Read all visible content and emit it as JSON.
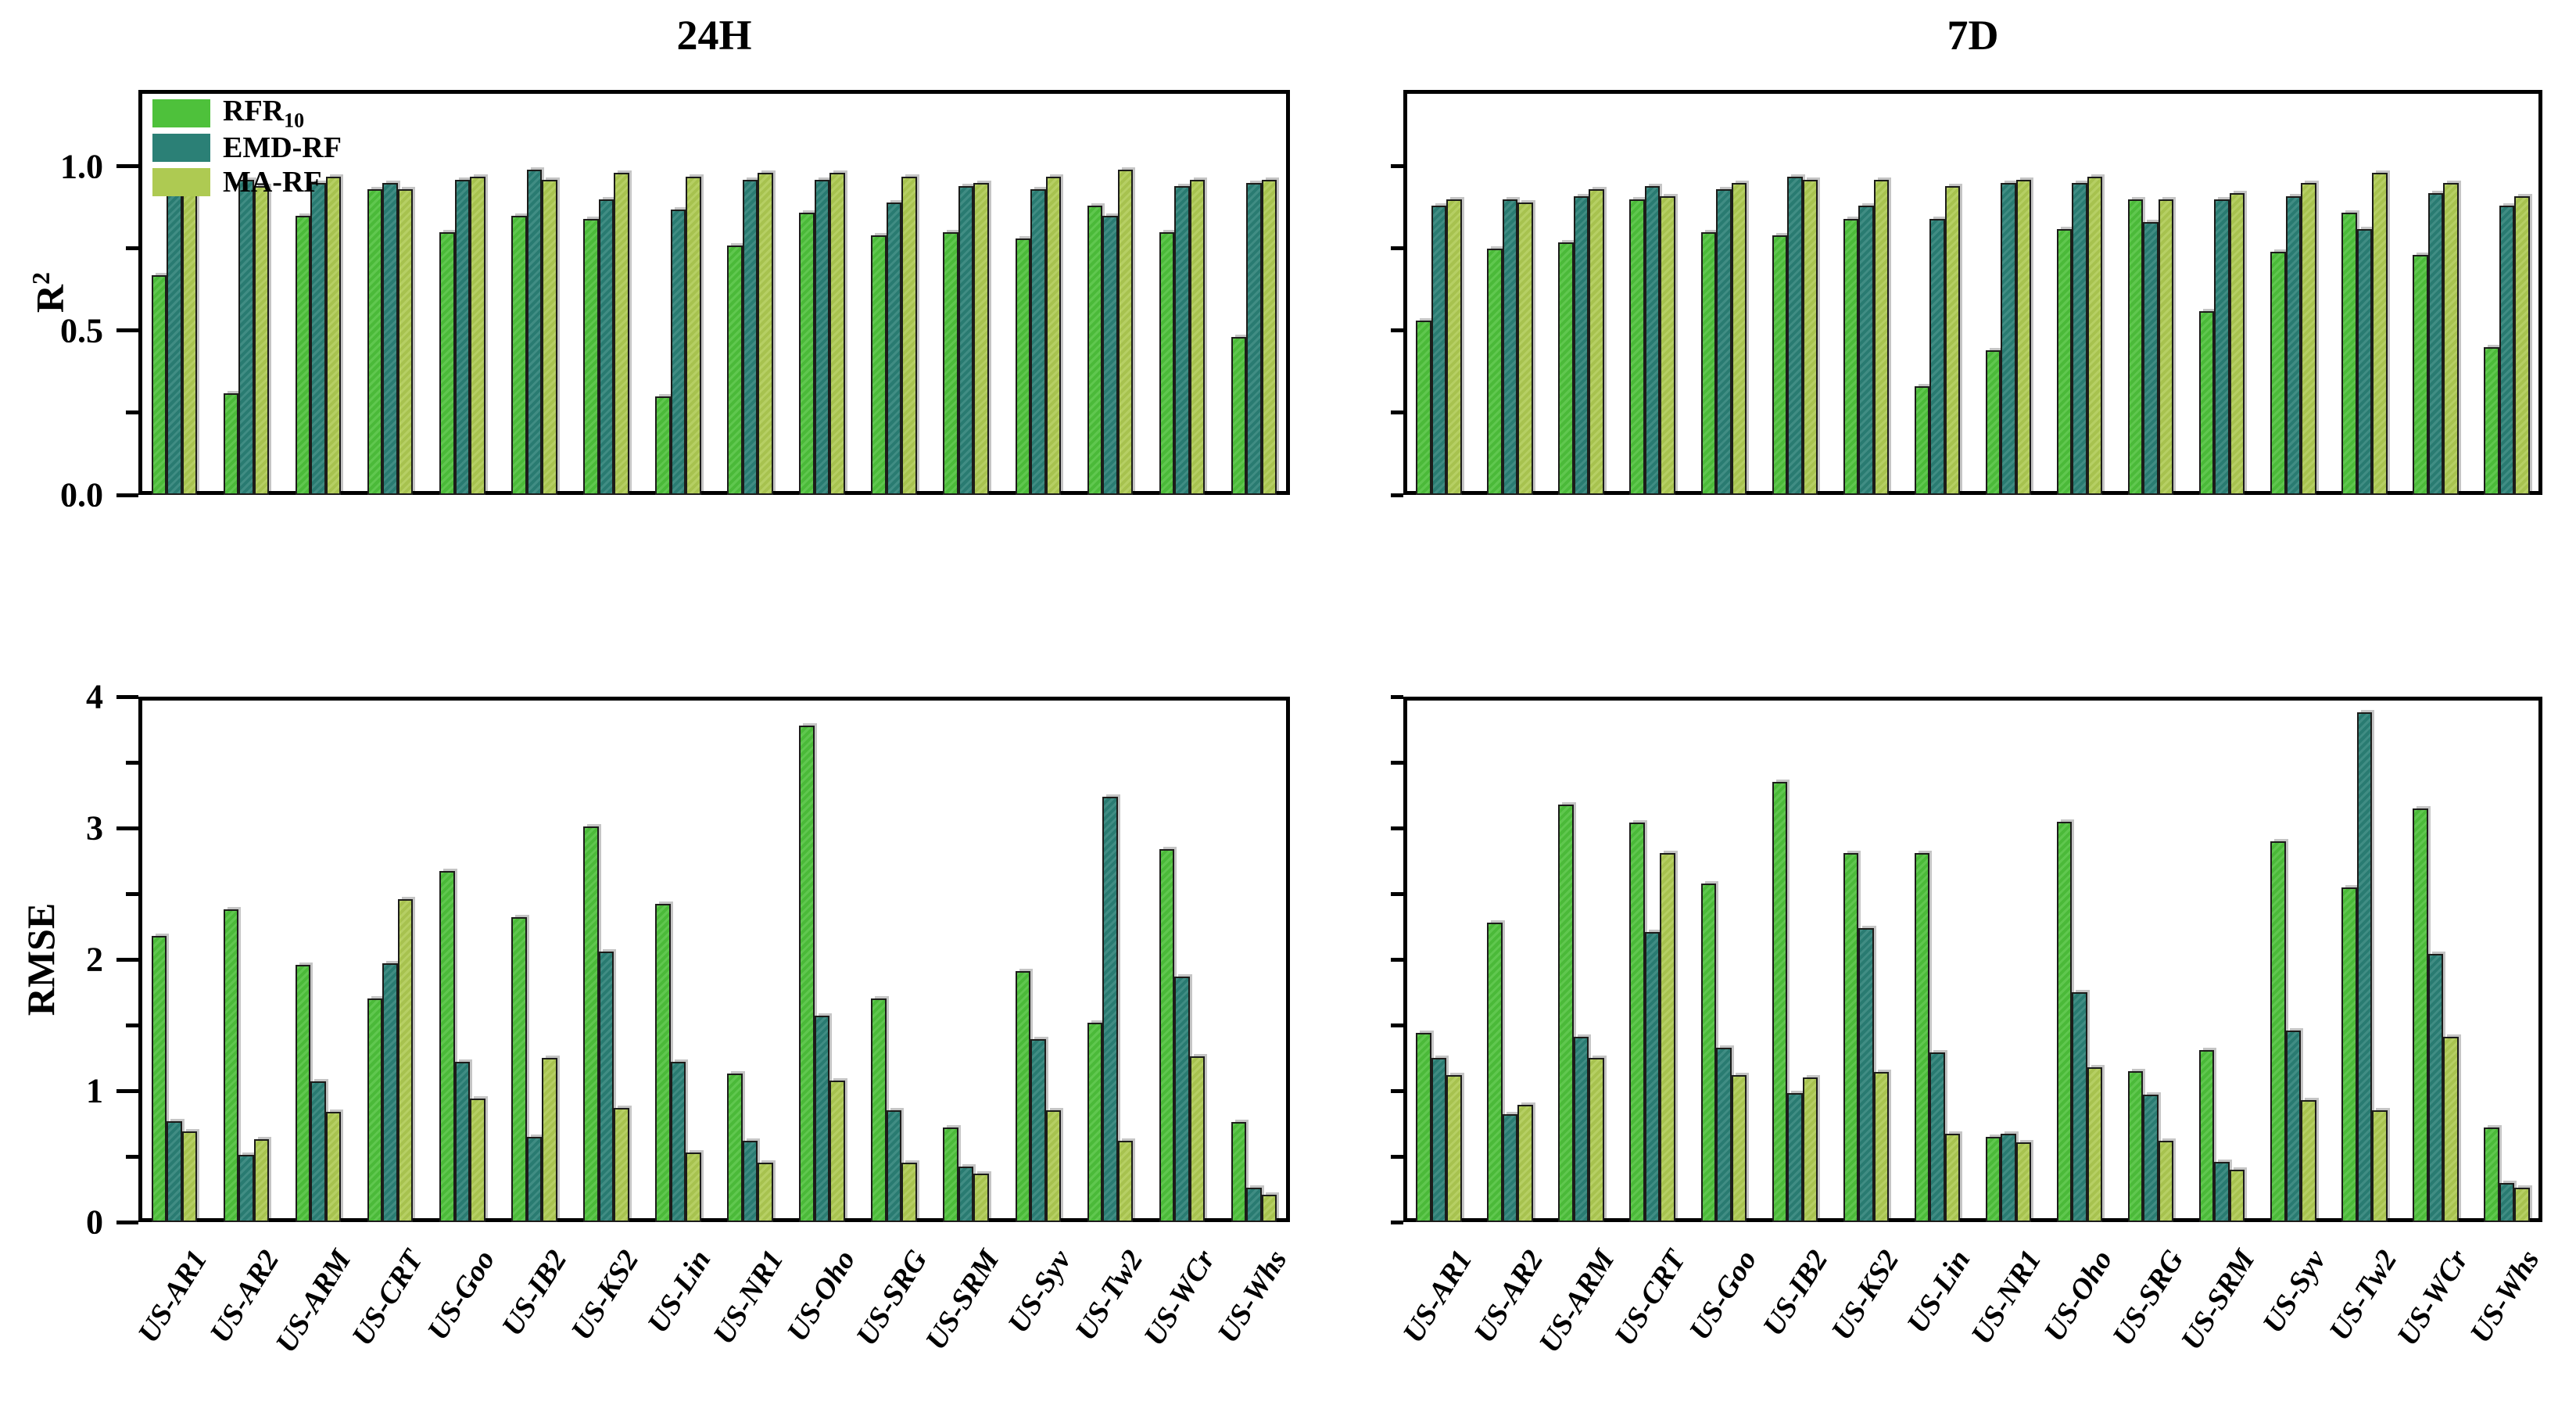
{
  "figure": {
    "titles": {
      "left": "24H",
      "right": "7D"
    },
    "y_axis_titles": {
      "top": {
        "text": "R",
        "superscript": "2"
      },
      "bottom": {
        "text": "RMSE"
      }
    },
    "legend": {
      "items": [
        {
          "label": "RFR",
          "subscript": "10",
          "series_key": "rfr10"
        },
        {
          "label": "EMD-RF",
          "subscript": "",
          "series_key": "emd_rf"
        },
        {
          "label": "MA-RF",
          "subscript": "",
          "series_key": "ma_rf"
        }
      ]
    },
    "colors": {
      "rfr10": "#4ec13b",
      "emd_rf": "#2b8076",
      "ma_rf": "#aeca52",
      "bar_edge": "#1c1c1a",
      "axis": "#000000"
    }
  },
  "chart_data": [
    {
      "id": "r2-24h",
      "type": "bar",
      "title": "24H",
      "ylabel": "R2",
      "categories": [
        "US-AR1",
        "US-AR2",
        "US-ARM",
        "US-CRT",
        "US-Goo",
        "US-IB2",
        "US-KS2",
        "US-Lin",
        "US-NR1",
        "US-Oho",
        "US-SRG",
        "US-SRM",
        "US-Syv",
        "US-Tw2",
        "US-WCr",
        "US-Whs"
      ],
      "series": [
        {
          "name": "RFR10",
          "values": [
            0.67,
            0.31,
            0.85,
            0.93,
            0.8,
            0.85,
            0.84,
            0.3,
            0.76,
            0.86,
            0.79,
            0.8,
            0.78,
            0.88,
            0.8,
            0.48
          ]
        },
        {
          "name": "EMD-RF",
          "values": [
            0.95,
            0.96,
            0.95,
            0.95,
            0.96,
            0.99,
            0.9,
            0.87,
            0.96,
            0.96,
            0.89,
            0.94,
            0.93,
            0.85,
            0.94,
            0.95
          ]
        },
        {
          "name": "MA-RF",
          "values": [
            0.95,
            0.94,
            0.97,
            0.93,
            0.97,
            0.96,
            0.98,
            0.97,
            0.98,
            0.98,
            0.97,
            0.95,
            0.97,
            0.99,
            0.96,
            0.96
          ]
        }
      ],
      "ylim": [
        0,
        1.23
      ],
      "yticks": [
        {
          "v": 0.0,
          "label": "0.0"
        },
        {
          "v": 0.25,
          "label": ""
        },
        {
          "v": 0.5,
          "label": "0.5"
        },
        {
          "v": 0.75,
          "label": ""
        },
        {
          "v": 1.0,
          "label": "1.0"
        }
      ],
      "grid": false,
      "legend_position": "upper-left"
    },
    {
      "id": "r2-7d",
      "type": "bar",
      "title": "7D",
      "ylabel": "R2",
      "categories": [
        "US-AR1",
        "US-AR2",
        "US-ARM",
        "US-CRT",
        "US-Goo",
        "US-IB2",
        "US-KS2",
        "US-Lin",
        "US-NR1",
        "US-Oho",
        "US-SRG",
        "US-SRM",
        "US-Syv",
        "US-Tw2",
        "US-WCr",
        "US-Whs"
      ],
      "series": [
        {
          "name": "RFR10",
          "values": [
            0.53,
            0.75,
            0.77,
            0.9,
            0.8,
            0.79,
            0.84,
            0.33,
            0.44,
            0.81,
            0.9,
            0.56,
            0.74,
            0.86,
            0.73,
            0.45
          ]
        },
        {
          "name": "EMD-RF",
          "values": [
            0.88,
            0.9,
            0.91,
            0.94,
            0.93,
            0.97,
            0.88,
            0.84,
            0.95,
            0.95,
            0.83,
            0.9,
            0.91,
            0.81,
            0.92,
            0.88
          ]
        },
        {
          "name": "MA-RF",
          "values": [
            0.9,
            0.89,
            0.93,
            0.91,
            0.95,
            0.96,
            0.96,
            0.94,
            0.96,
            0.97,
            0.9,
            0.92,
            0.95,
            0.98,
            0.95,
            0.91
          ]
        }
      ],
      "ylim": [
        0,
        1.23
      ],
      "yticks": [
        {
          "v": 0.0,
          "label": ""
        },
        {
          "v": 0.25,
          "label": ""
        },
        {
          "v": 0.5,
          "label": ""
        },
        {
          "v": 0.75,
          "label": ""
        },
        {
          "v": 1.0,
          "label": ""
        }
      ],
      "grid": false,
      "legend_position": "none"
    },
    {
      "id": "rmse-24h",
      "type": "bar",
      "title": "24H",
      "ylabel": "RMSE",
      "categories": [
        "US-AR1",
        "US-AR2",
        "US-ARM",
        "US-CRT",
        "US-Goo",
        "US-IB2",
        "US-KS2",
        "US-Lin",
        "US-NR1",
        "US-Oho",
        "US-SRG",
        "US-SRM",
        "US-Syv",
        "US-Tw2",
        "US-WCr",
        "US-Whs"
      ],
      "series": [
        {
          "name": "RFR10",
          "values": [
            2.18,
            2.38,
            1.96,
            1.7,
            2.67,
            2.32,
            3.01,
            2.42,
            1.13,
            3.78,
            1.7,
            0.72,
            1.91,
            1.52,
            2.84,
            0.76
          ]
        },
        {
          "name": "EMD-RF",
          "values": [
            0.77,
            0.51,
            1.07,
            1.97,
            1.22,
            0.65,
            2.06,
            1.22,
            0.62,
            1.57,
            0.85,
            0.42,
            1.39,
            3.24,
            1.87,
            0.26
          ]
        },
        {
          "name": "MA-RF",
          "values": [
            0.69,
            0.63,
            0.84,
            2.46,
            0.94,
            1.25,
            0.87,
            0.53,
            0.45,
            1.08,
            0.45,
            0.37,
            0.85,
            0.62,
            1.26,
            0.21
          ]
        }
      ],
      "ylim": [
        0,
        4
      ],
      "yticks": [
        {
          "v": 0,
          "label": "0"
        },
        {
          "v": 0.5,
          "label": ""
        },
        {
          "v": 1,
          "label": "1"
        },
        {
          "v": 1.5,
          "label": ""
        },
        {
          "v": 2,
          "label": "2"
        },
        {
          "v": 2.5,
          "label": ""
        },
        {
          "v": 3,
          "label": "3"
        },
        {
          "v": 3.5,
          "label": ""
        },
        {
          "v": 4,
          "label": "4"
        }
      ],
      "grid": false,
      "legend_position": "none"
    },
    {
      "id": "rmse-7d",
      "type": "bar",
      "title": "7D",
      "ylabel": "RMSE",
      "categories": [
        "US-AR1",
        "US-AR2",
        "US-ARM",
        "US-CRT",
        "US-Goo",
        "US-IB2",
        "US-KS2",
        "US-Lin",
        "US-NR1",
        "US-Oho",
        "US-SRG",
        "US-SRM",
        "US-Syv",
        "US-Tw2",
        "US-WCr",
        "US-Whs"
      ],
      "series": [
        {
          "name": "RFR10",
          "values": [
            1.44,
            2.28,
            3.18,
            3.04,
            2.58,
            3.35,
            2.81,
            2.81,
            0.65,
            3.05,
            1.15,
            1.31,
            2.9,
            2.55,
            3.15,
            0.72
          ]
        },
        {
          "name": "EMD-RF",
          "values": [
            1.25,
            0.82,
            1.41,
            2.21,
            1.33,
            0.98,
            2.24,
            1.29,
            0.67,
            1.75,
            0.97,
            0.46,
            1.46,
            3.88,
            2.04,
            0.3
          ]
        },
        {
          "name": "MA-RF",
          "values": [
            1.12,
            0.89,
            1.25,
            2.81,
            1.12,
            1.1,
            1.14,
            0.67,
            0.61,
            1.18,
            0.62,
            0.4,
            0.93,
            0.85,
            1.41,
            0.26
          ]
        }
      ],
      "ylim": [
        0,
        4
      ],
      "yticks": [
        {
          "v": 0,
          "label": ""
        },
        {
          "v": 0.5,
          "label": ""
        },
        {
          "v": 1,
          "label": ""
        },
        {
          "v": 1.5,
          "label": ""
        },
        {
          "v": 2,
          "label": ""
        },
        {
          "v": 2.5,
          "label": ""
        },
        {
          "v": 3,
          "label": ""
        },
        {
          "v": 3.5,
          "label": ""
        },
        {
          "v": 4,
          "label": ""
        }
      ],
      "grid": false,
      "legend_position": "none"
    }
  ]
}
